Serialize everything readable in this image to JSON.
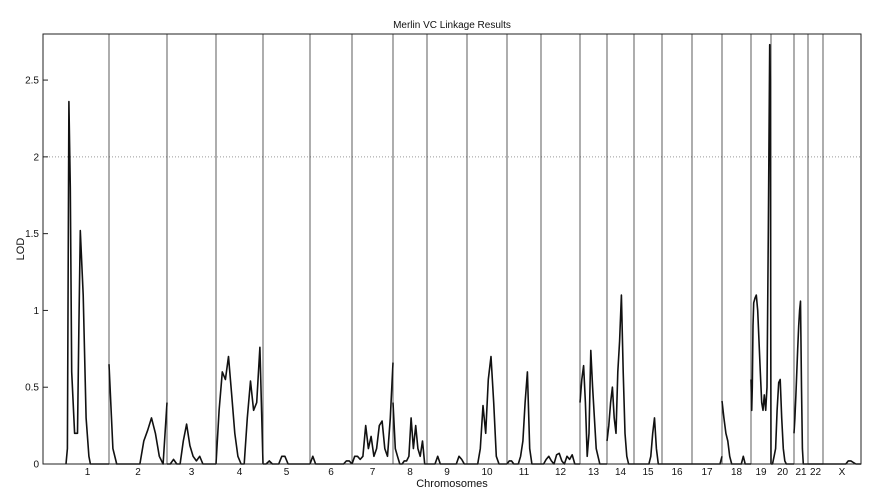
{
  "chart_data": {
    "type": "line",
    "title": "Merlin VC Linkage Results",
    "xlabel": "Chromosomes",
    "ylabel": "LOD",
    "ylim": [
      0,
      2.8
    ],
    "yticks": [
      0,
      0.5,
      1,
      1.5,
      2,
      2.5
    ],
    "ytick_labels": [
      "0",
      "0.5",
      "1",
      "1.5",
      "2",
      "2.5"
    ],
    "threshold": 2,
    "grid": false,
    "chromosomes": [
      {
        "label": "1",
        "x": [
          0,
          0.5,
          1.0,
          1.5,
          2.0,
          3,
          4,
          4.5,
          5.0,
          6,
          7,
          8,
          8.5,
          9,
          9.5,
          10.0,
          11.0,
          12,
          13,
          14,
          15
        ],
        "y": [
          0,
          0.1,
          2.36,
          1.8,
          0.6,
          0.2,
          0.2,
          0.9,
          1.52,
          1.1,
          0.3,
          0.05,
          0.0,
          0,
          0,
          0,
          0,
          0,
          0,
          0,
          0
        ]
      },
      {
        "label": "2",
        "x": [
          0,
          1,
          2,
          3,
          4,
          4.5,
          5,
          6,
          6.5,
          7,
          8,
          9,
          10,
          11,
          12,
          13,
          14,
          15
        ],
        "y": [
          0.65,
          0.1,
          0,
          0,
          0,
          0,
          0,
          0,
          0,
          0,
          0,
          0.15,
          0.22,
          0.3,
          0.2,
          0.05,
          0,
          0.4
        ]
      },
      {
        "label": "3",
        "x": [
          0,
          1,
          2,
          3,
          4,
          5,
          6,
          7,
          8,
          9,
          10,
          11,
          12,
          13,
          14,
          15
        ],
        "y": [
          0,
          0,
          0.03,
          0,
          0,
          0.15,
          0.26,
          0.12,
          0.05,
          0.02,
          0.05,
          0,
          0,
          0,
          0,
          0
        ]
      },
      {
        "label": "4",
        "x": [
          0,
          1,
          2,
          3,
          4,
          5,
          6,
          7,
          8,
          9,
          10,
          11,
          12,
          13,
          14,
          15
        ],
        "y": [
          0,
          0.35,
          0.6,
          0.55,
          0.7,
          0.45,
          0.2,
          0.05,
          0,
          0,
          0.3,
          0.54,
          0.35,
          0.4,
          0.76,
          0
        ]
      },
      {
        "label": "5",
        "x": [
          0,
          1,
          2,
          3,
          4,
          5,
          6,
          7,
          8,
          9,
          10,
          11,
          12,
          13,
          14,
          15
        ],
        "y": [
          0,
          0,
          0.02,
          0,
          0,
          0,
          0.05,
          0.05,
          0,
          0,
          0,
          0,
          0,
          0,
          0,
          0
        ]
      },
      {
        "label": "6",
        "x": [
          0,
          1,
          2,
          3,
          4,
          5,
          6,
          7,
          8,
          9,
          10,
          11,
          12,
          13,
          14,
          15
        ],
        "y": [
          0,
          0.05,
          0,
          0,
          0,
          0,
          0,
          0,
          0,
          0,
          0,
          0,
          0,
          0.02,
          0.02,
          0
        ]
      },
      {
        "label": "7",
        "x": [
          0,
          1,
          2,
          3,
          4,
          5,
          6,
          7,
          8,
          9,
          10,
          11,
          12,
          13,
          14,
          15
        ],
        "y": [
          0,
          0.05,
          0.05,
          0.03,
          0.05,
          0.25,
          0.1,
          0.18,
          0.05,
          0.1,
          0.25,
          0.28,
          0.1,
          0.05,
          0.3,
          0.66
        ]
      },
      {
        "label": "8",
        "x": [
          0,
          1,
          2,
          3,
          4,
          5,
          6,
          7,
          8,
          9,
          10,
          11,
          12,
          13,
          14,
          15
        ],
        "y": [
          0.4,
          0.1,
          0.05,
          0,
          0,
          0.02,
          0.02,
          0.05,
          0.3,
          0.1,
          0.25,
          0.1,
          0.05,
          0.15,
          0,
          0
        ]
      },
      {
        "label": "9",
        "x": [
          0,
          1,
          2,
          3,
          4,
          5,
          6,
          7,
          8,
          9,
          10,
          11,
          12,
          13,
          14,
          15
        ],
        "y": [
          0,
          0,
          0,
          0,
          0.05,
          0,
          0,
          0,
          0,
          0,
          0,
          0,
          0.05,
          0.03,
          0,
          0
        ]
      },
      {
        "label": "10",
        "x": [
          0,
          1,
          2,
          3,
          4,
          5,
          6,
          7,
          8,
          9,
          10,
          11,
          12,
          13,
          14,
          15
        ],
        "y": [
          0,
          0,
          0,
          0,
          0,
          0.1,
          0.38,
          0.2,
          0.55,
          0.7,
          0.4,
          0.05,
          0,
          0,
          0,
          0
        ]
      },
      {
        "label": "11",
        "x": [
          0,
          1,
          2,
          3,
          4,
          5,
          6,
          7,
          8,
          9,
          10,
          11,
          12,
          13,
          14,
          15
        ],
        "y": [
          0,
          0.02,
          0.02,
          0,
          0,
          0,
          0.05,
          0.15,
          0.4,
          0.6,
          0.1,
          0,
          0,
          0,
          0,
          0
        ]
      },
      {
        "label": "12",
        "x": [
          0,
          1,
          2,
          3,
          4,
          5,
          6,
          7,
          8,
          9,
          10,
          11,
          12,
          13,
          14,
          15
        ],
        "y": [
          0,
          0,
          0.03,
          0.05,
          0.02,
          0,
          0.06,
          0.07,
          0.02,
          0,
          0.05,
          0.03,
          0.06,
          0,
          0,
          0
        ]
      },
      {
        "label": "13",
        "x": [
          0,
          1,
          2,
          3,
          4,
          5,
          6,
          7,
          8,
          9,
          10,
          11,
          12,
          13,
          14,
          15
        ],
        "y": [
          0.4,
          0.55,
          0.64,
          0.4,
          0.05,
          0.2,
          0.74,
          0.5,
          0.3,
          0.1,
          0.05,
          0,
          0,
          0,
          0,
          0
        ]
      },
      {
        "label": "14",
        "x": [
          0,
          1,
          2,
          3,
          4,
          5,
          6,
          7,
          8,
          9,
          10,
          11,
          12,
          13,
          14,
          15
        ],
        "y": [
          0.15,
          0.25,
          0.4,
          0.5,
          0.3,
          0.2,
          0.6,
          0.8,
          1.1,
          0.6,
          0.2,
          0.05,
          0,
          0,
          0,
          0
        ]
      },
      {
        "label": "15",
        "x": [
          0,
          1,
          2,
          3,
          4,
          5,
          6,
          7,
          8,
          9,
          10,
          11,
          12,
          13,
          14,
          15
        ],
        "y": [
          0,
          0,
          0,
          0,
          0,
          0,
          0,
          0,
          0,
          0.05,
          0.2,
          0.3,
          0.1,
          0,
          0,
          0
        ]
      },
      {
        "label": "16",
        "x": [
          0,
          1,
          2,
          3,
          4,
          5,
          6,
          7,
          8,
          9,
          10,
          11,
          12,
          13,
          14,
          15
        ],
        "y": [
          0,
          0,
          0,
          0,
          0,
          0,
          0,
          0,
          0,
          0,
          0,
          0,
          0,
          0,
          0,
          0
        ]
      },
      {
        "label": "17",
        "x": [
          0,
          1,
          2,
          3,
          4,
          5,
          6,
          7,
          8,
          9,
          10,
          11,
          12,
          13,
          14,
          15
        ],
        "y": [
          0,
          0,
          0,
          0,
          0,
          0,
          0,
          0,
          0,
          0,
          0,
          0,
          0,
          0,
          0,
          0.05
        ]
      },
      {
        "label": "18",
        "x": [
          0,
          1,
          2,
          3,
          4,
          5,
          6,
          7,
          8,
          9,
          10,
          11,
          12,
          13,
          14,
          15
        ],
        "y": [
          0.41,
          0.3,
          0.2,
          0.15,
          0.05,
          0,
          0,
          0,
          0,
          0,
          0,
          0.05,
          0,
          0,
          0,
          0
        ]
      },
      {
        "label": "19",
        "x": [
          0,
          0.5,
          1,
          1.5,
          2,
          3,
          4,
          5,
          6,
          7,
          8,
          9,
          10,
          11,
          12,
          13,
          14,
          14.5,
          15
        ],
        "y": [
          0.55,
          0.35,
          0.5,
          0.9,
          1.05,
          1.08,
          1.1,
          1.0,
          0.8,
          0.6,
          0.4,
          0.35,
          0.45,
          0.35,
          0.5,
          1.5,
          2.73,
          2.5,
          0
        ]
      },
      {
        "label": "20",
        "x": [
          0,
          1,
          2,
          3,
          4,
          5,
          6,
          7,
          8,
          9,
          10,
          11,
          12,
          13,
          14,
          15
        ],
        "y": [
          0,
          0,
          0.05,
          0.1,
          0.35,
          0.53,
          0.55,
          0.3,
          0.1,
          0.02,
          0,
          0,
          0,
          0,
          0,
          0
        ]
      },
      {
        "label": "21",
        "x": [
          0,
          1,
          2,
          3,
          4,
          5,
          6,
          7,
          8,
          9,
          10,
          11,
          12,
          13,
          14,
          15
        ],
        "y": [
          0.2,
          0.3,
          0.45,
          0.6,
          0.75,
          0.9,
          1.0,
          1.06,
          0.5,
          0.1,
          0,
          0,
          0,
          0,
          0,
          0
        ]
      },
      {
        "label": "22",
        "x": [
          0,
          1,
          2,
          3,
          4,
          5,
          6,
          7,
          8,
          9,
          10,
          11,
          12,
          13,
          14,
          15
        ],
        "y": [
          0,
          0,
          0,
          0,
          0,
          0,
          0,
          0,
          0,
          0,
          0,
          0,
          0,
          0,
          0,
          0
        ]
      },
      {
        "label": "X",
        "x": [
          0,
          1,
          2,
          3,
          4,
          5,
          6,
          7,
          8,
          9,
          10,
          11,
          12,
          13,
          14,
          15
        ],
        "y": [
          0,
          0,
          0,
          0,
          0,
          0,
          0,
          0,
          0,
          0,
          0.02,
          0.02,
          0.01,
          0,
          0,
          0
        ]
      }
    ]
  }
}
